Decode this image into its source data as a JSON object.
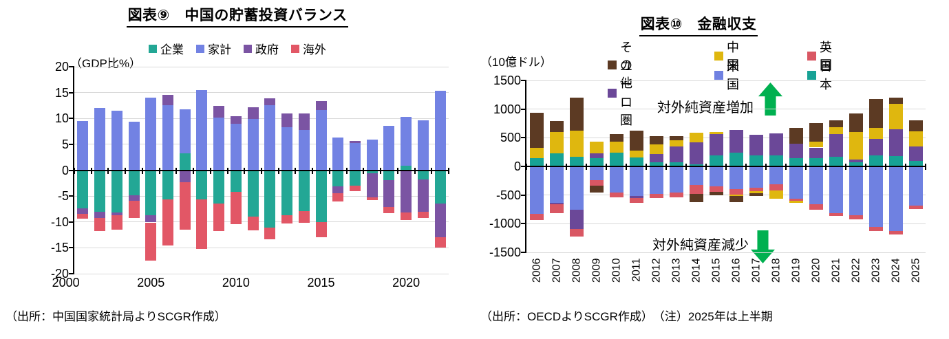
{
  "left_chart": {
    "title": "図表⑨　中国の貯蓄投資バランス",
    "unit_label": "（GDP比%）",
    "source": "（出所：中国国家統計局よりSCGR作成）",
    "chart_data": {
      "type": "bar",
      "stacked": true,
      "title": "図表⑨　中国の貯蓄投資バランス",
      "ylabel": "（GDP比%）",
      "ylim": [
        -20,
        20
      ],
      "ytick_step": 5,
      "y_ticks": [
        20,
        15,
        10,
        5,
        0,
        -5,
        -10,
        -15,
        -20
      ],
      "grid": true,
      "legend_position": "top",
      "x_axis_labels": [
        "2000",
        "2005",
        "2010",
        "2015",
        "2020"
      ],
      "categories": [
        "2001",
        "2002",
        "2003",
        "2004",
        "2005",
        "2006",
        "2007",
        "2008",
        "2009",
        "2010",
        "2011",
        "2012",
        "2013",
        "2014",
        "2015",
        "2016",
        "2017",
        "2018",
        "2019",
        "2020",
        "2021",
        "2022"
      ],
      "series": [
        {
          "name": "企業",
          "color": "#23A795",
          "values": [
            -7.4,
            -8.0,
            -8.2,
            -4.8,
            -8.7,
            -5.6,
            3.3,
            -5.6,
            -6.5,
            -4.2,
            -9.0,
            -11.1,
            -8.7,
            -7.9,
            -10.0,
            -3.1,
            -3.0,
            -0.6,
            -1.9,
            0.8,
            -1.8,
            -6.4
          ]
        },
        {
          "name": "家計",
          "color": "#7282E3",
          "values": [
            9.5,
            12.0,
            11.5,
            9.4,
            14.0,
            12.5,
            8.4,
            15.5,
            10.2,
            9.0,
            9.9,
            12.6,
            8.3,
            7.8,
            11.6,
            6.3,
            5.2,
            5.9,
            8.6,
            9.5,
            9.6,
            15.3
          ]
        },
        {
          "name": "政府",
          "color": "#7B54A3",
          "values": [
            -1.1,
            -1.3,
            -0.5,
            -1.1,
            -1.4,
            2.1,
            -2.3,
            0,
            2.2,
            1.4,
            2.2,
            1.3,
            2.7,
            3.2,
            1.7,
            -1.3,
            0.4,
            -4.7,
            -5.2,
            -8.2,
            -6.2,
            -6.6
          ]
        },
        {
          "name": "海外",
          "color": "#E25766",
          "values": [
            -0.9,
            -2.4,
            -2.8,
            -3.3,
            -7.4,
            -8.9,
            -9.2,
            -9.6,
            -5.2,
            -6.2,
            -2.6,
            -2.3,
            -1.6,
            -2.3,
            -3.0,
            -1.7,
            -1.1,
            -0.5,
            -1.2,
            -1.5,
            -1.3,
            -2.0
          ]
        }
      ]
    }
  },
  "right_chart": {
    "title": "図表⑩　金融収支",
    "unit_label": "（10億ドル）",
    "source": "（出所：OECDよりSCGR作成）　（注）2025年は上半期",
    "annotations": {
      "increase": "対外純資産増加",
      "decrease": "対外純資産減少",
      "arrow_color": "#00B050"
    },
    "legend_rows": [
      [
        "その他",
        "中国",
        "英国"
      ],
      [
        "ユーロ圏",
        "米国",
        "日本"
      ]
    ],
    "chart_data": {
      "type": "bar",
      "stacked": true,
      "title": "図表⑩　金融収支",
      "ylabel": "（10億ドル）",
      "ylim": [
        -1500,
        1500
      ],
      "ytick_step": 500,
      "y_ticks": [
        1500,
        1000,
        500,
        0,
        -500,
        -1000,
        -1500
      ],
      "grid": true,
      "legend_position": "top",
      "categories": [
        "2006",
        "2007",
        "2008",
        "2009",
        "2010",
        "2011",
        "2012",
        "2013",
        "2014",
        "2015",
        "2016",
        "2017",
        "2018",
        "2019",
        "2020",
        "2021",
        "2022",
        "2023",
        "2024",
        "2025"
      ],
      "series": [
        {
          "name": "日本",
          "color": "#17A295",
          "values": [
            140,
            230,
            165,
            150,
            245,
            155,
            70,
            75,
            35,
            190,
            245,
            190,
            190,
            145,
            140,
            170,
            70,
            190,
            185,
            95
          ]
        },
        {
          "name": "米国",
          "color": "#6F81E1",
          "values": [
            -830,
            -630,
            -760,
            -235,
            -450,
            -510,
            -475,
            -460,
            -325,
            -350,
            -400,
            -370,
            -310,
            -560,
            -660,
            -820,
            -850,
            -1060,
            -1130,
            -680
          ]
        },
        {
          "name": "ユーロ圏",
          "color": "#6B4898",
          "values": [
            0,
            -30,
            -335,
            75,
            0,
            -40,
            145,
            270,
            385,
            375,
            395,
            365,
            385,
            250,
            190,
            390,
            50,
            290,
            465,
            250
          ]
        },
        {
          "name": "英国",
          "color": "#D95763",
          "values": [
            -105,
            -160,
            -130,
            -100,
            -90,
            -85,
            -80,
            -75,
            -160,
            -90,
            -90,
            -60,
            -110,
            -45,
            -90,
            -40,
            -70,
            -70,
            -55,
            -60
          ]
        },
        {
          "name": "中国",
          "color": "#DFB70F",
          "values": [
            185,
            370,
            465,
            205,
            185,
            125,
            170,
            110,
            170,
            40,
            -30,
            -35,
            -140,
            -30,
            100,
            120,
            480,
            190,
            440,
            265
          ]
        },
        {
          "name": "その他",
          "color": "#5C3A23",
          "values": [
            610,
            190,
            570,
            -120,
            130,
            350,
            140,
            75,
            -140,
            -70,
            -100,
            -45,
            0,
            275,
            330,
            130,
            320,
            510,
            110,
            190
          ]
        }
      ]
    }
  }
}
